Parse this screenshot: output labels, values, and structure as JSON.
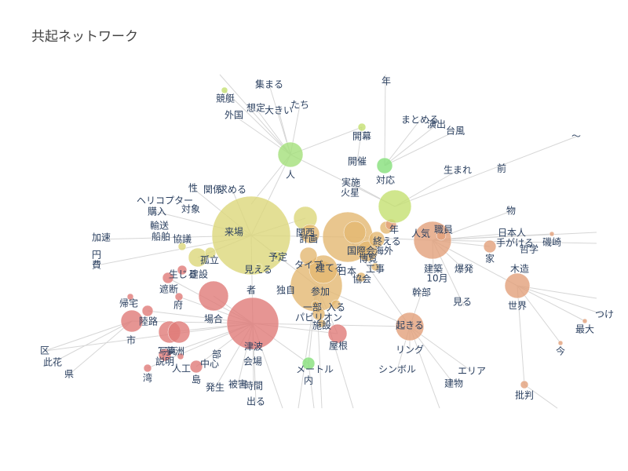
{
  "chart_data": {
    "type": "network",
    "title": "共起ネットワーク",
    "colors": {
      "red": "#e07b78",
      "orange": "#e2a07a",
      "gold": "#e3b872",
      "yellow": "#dcd77a",
      "lime": "#c4e070",
      "green": "#a4e07a",
      "bright_green": "#86e07a",
      "edge": "#d6d6d6",
      "label": "#2a3f5f"
    },
    "nodes": [
      {
        "id": "来場",
        "size": 50,
        "color": "yellow"
      },
      {
        "id": "津波",
        "size": 33,
        "color": "red"
      },
      {
        "id": "関西",
        "size": 15,
        "color": "yellow"
      },
      {
        "id": "計画",
        "size": 12,
        "color": "gold"
      },
      {
        "id": "日本",
        "size": 32,
        "color": "gold"
      },
      {
        "id": "国際会",
        "size": 14,
        "color": "gold"
      },
      {
        "id": "博覧",
        "size": 13,
        "color": "gold"
      },
      {
        "id": "海外",
        "size": 10,
        "color": "gold"
      },
      {
        "id": "終える",
        "size": 8,
        "color": "gold"
      },
      {
        "id": "年",
        "size": 7,
        "color": "orange"
      },
      {
        "id": "人気",
        "size": 24,
        "color": "orange"
      },
      {
        "id": "職員",
        "size": 6,
        "color": "orange"
      },
      {
        "id": "建設",
        "size": 12,
        "color": "yellow"
      },
      {
        "id": "孤立",
        "size": 7,
        "color": "yellow"
      },
      {
        "id": "協議",
        "size": 5,
        "color": "yellow"
      },
      {
        "id": "参加",
        "size": 33,
        "color": "gold"
      },
      {
        "id": "建てる",
        "size": 18,
        "color": "gold"
      },
      {
        "id": "タイプ",
        "size": 11,
        "color": "gold"
      },
      {
        "id": "予定",
        "size": 6,
        "color": "yellow"
      },
      {
        "id": "見える",
        "size": 4,
        "color": "yellow"
      },
      {
        "id": "協会",
        "size": 6,
        "color": "gold"
      },
      {
        "id": "工事",
        "size": 5,
        "color": "gold"
      },
      {
        "id": "パビリオン",
        "size": 8,
        "color": "gold"
      },
      {
        "id": "入る",
        "size": 6,
        "color": "gold"
      },
      {
        "id": "施設",
        "size": 5,
        "color": "gold"
      },
      {
        "id": "部",
        "size": 5,
        "color": "gold"
      },
      {
        "id": "人",
        "size": 16,
        "color": "green"
      },
      {
        "id": "開幕",
        "size": 5,
        "color": "lime"
      },
      {
        "id": "対応",
        "size": 10,
        "color": "bright_green"
      },
      {
        "id": "開催",
        "size": 21,
        "color": "lime"
      },
      {
        "id": "競艇",
        "size": 4,
        "color": "lime"
      },
      {
        "id": "場合",
        "size": 19,
        "color": "red"
      },
      {
        "id": "市",
        "size": 14,
        "color": "red"
      },
      {
        "id": "陸路",
        "size": 7,
        "color": "red"
      },
      {
        "id": "帰宅",
        "size": 4,
        "color": "red"
      },
      {
        "id": "写真",
        "size": 14,
        "color": "red"
      },
      {
        "id": "夢洲",
        "size": 14,
        "color": "red"
      },
      {
        "id": "説明",
        "size": 8,
        "color": "red"
      },
      {
        "id": "人工",
        "size": 4,
        "color": "red"
      },
      {
        "id": "島",
        "size": 8,
        "color": "red"
      },
      {
        "id": "湾",
        "size": 5,
        "color": "red"
      },
      {
        "id": "遮断",
        "size": 7,
        "color": "red"
      },
      {
        "id": "生じる",
        "size": 6,
        "color": "red"
      },
      {
        "id": "府",
        "size": 5,
        "color": "red"
      },
      {
        "id": "屋根",
        "size": 12,
        "color": "red"
      },
      {
        "id": "メートル",
        "size": 8,
        "color": "bright_green"
      },
      {
        "id": "起きる",
        "size": 18,
        "color": "orange"
      },
      {
        "id": "世界",
        "size": 16,
        "color": "orange"
      },
      {
        "id": "家",
        "size": 8,
        "color": "orange"
      },
      {
        "id": "磯崎",
        "size": 3,
        "color": "orange"
      },
      {
        "id": "今",
        "size": 3,
        "color": "orange"
      },
      {
        "id": "批判",
        "size": 5,
        "color": "orange"
      },
      {
        "id": "最大",
        "size": 3,
        "color": "orange"
      }
    ],
    "labels": [
      "共起ネットワーク",
      "集まる",
      "年",
      "競艇",
      "想定",
      "たち",
      "大きい",
      "外国",
      "まとめる",
      "演出",
      "台風",
      "開幕",
      "〜",
      "開催",
      "対応",
      "生まれ",
      "前",
      "人",
      "実施",
      "火星",
      "性",
      "関係",
      "求める",
      "ヘリコプター",
      "対象",
      "購入",
      "輸送",
      "船舶",
      "協議",
      "加速",
      "円",
      "費",
      "物",
      "日本人",
      "手がける",
      "哲学",
      "磯崎",
      "来場",
      "関西",
      "計画",
      "人気",
      "職員",
      "年",
      "終える",
      "国際会",
      "海外",
      "博覧",
      "家",
      "孤立",
      "予定",
      "タイプ",
      "建てる",
      "日本",
      "工事",
      "協会",
      "建築",
      "10月",
      "爆発",
      "木造",
      "生じる",
      "建設",
      "遮断",
      "見える",
      "府",
      "帰宅",
      "者",
      "独自",
      "一部",
      "参加",
      "入る",
      "世界",
      "陸路",
      "場合",
      "パビリオン",
      "施設",
      "幹部",
      "見る",
      "つけ",
      "最大",
      "市",
      "写真",
      "夢洲",
      "屋根",
      "起きる",
      "リング",
      "今",
      "区",
      "此花",
      "県",
      "説明",
      "人工",
      "中心",
      "部",
      "津波",
      "会場",
      "湾",
      "島",
      "発生",
      "被害",
      "時間",
      "メートル",
      "内",
      "シンボル",
      "エリア",
      "建物",
      "批判",
      "出る"
    ]
  }
}
